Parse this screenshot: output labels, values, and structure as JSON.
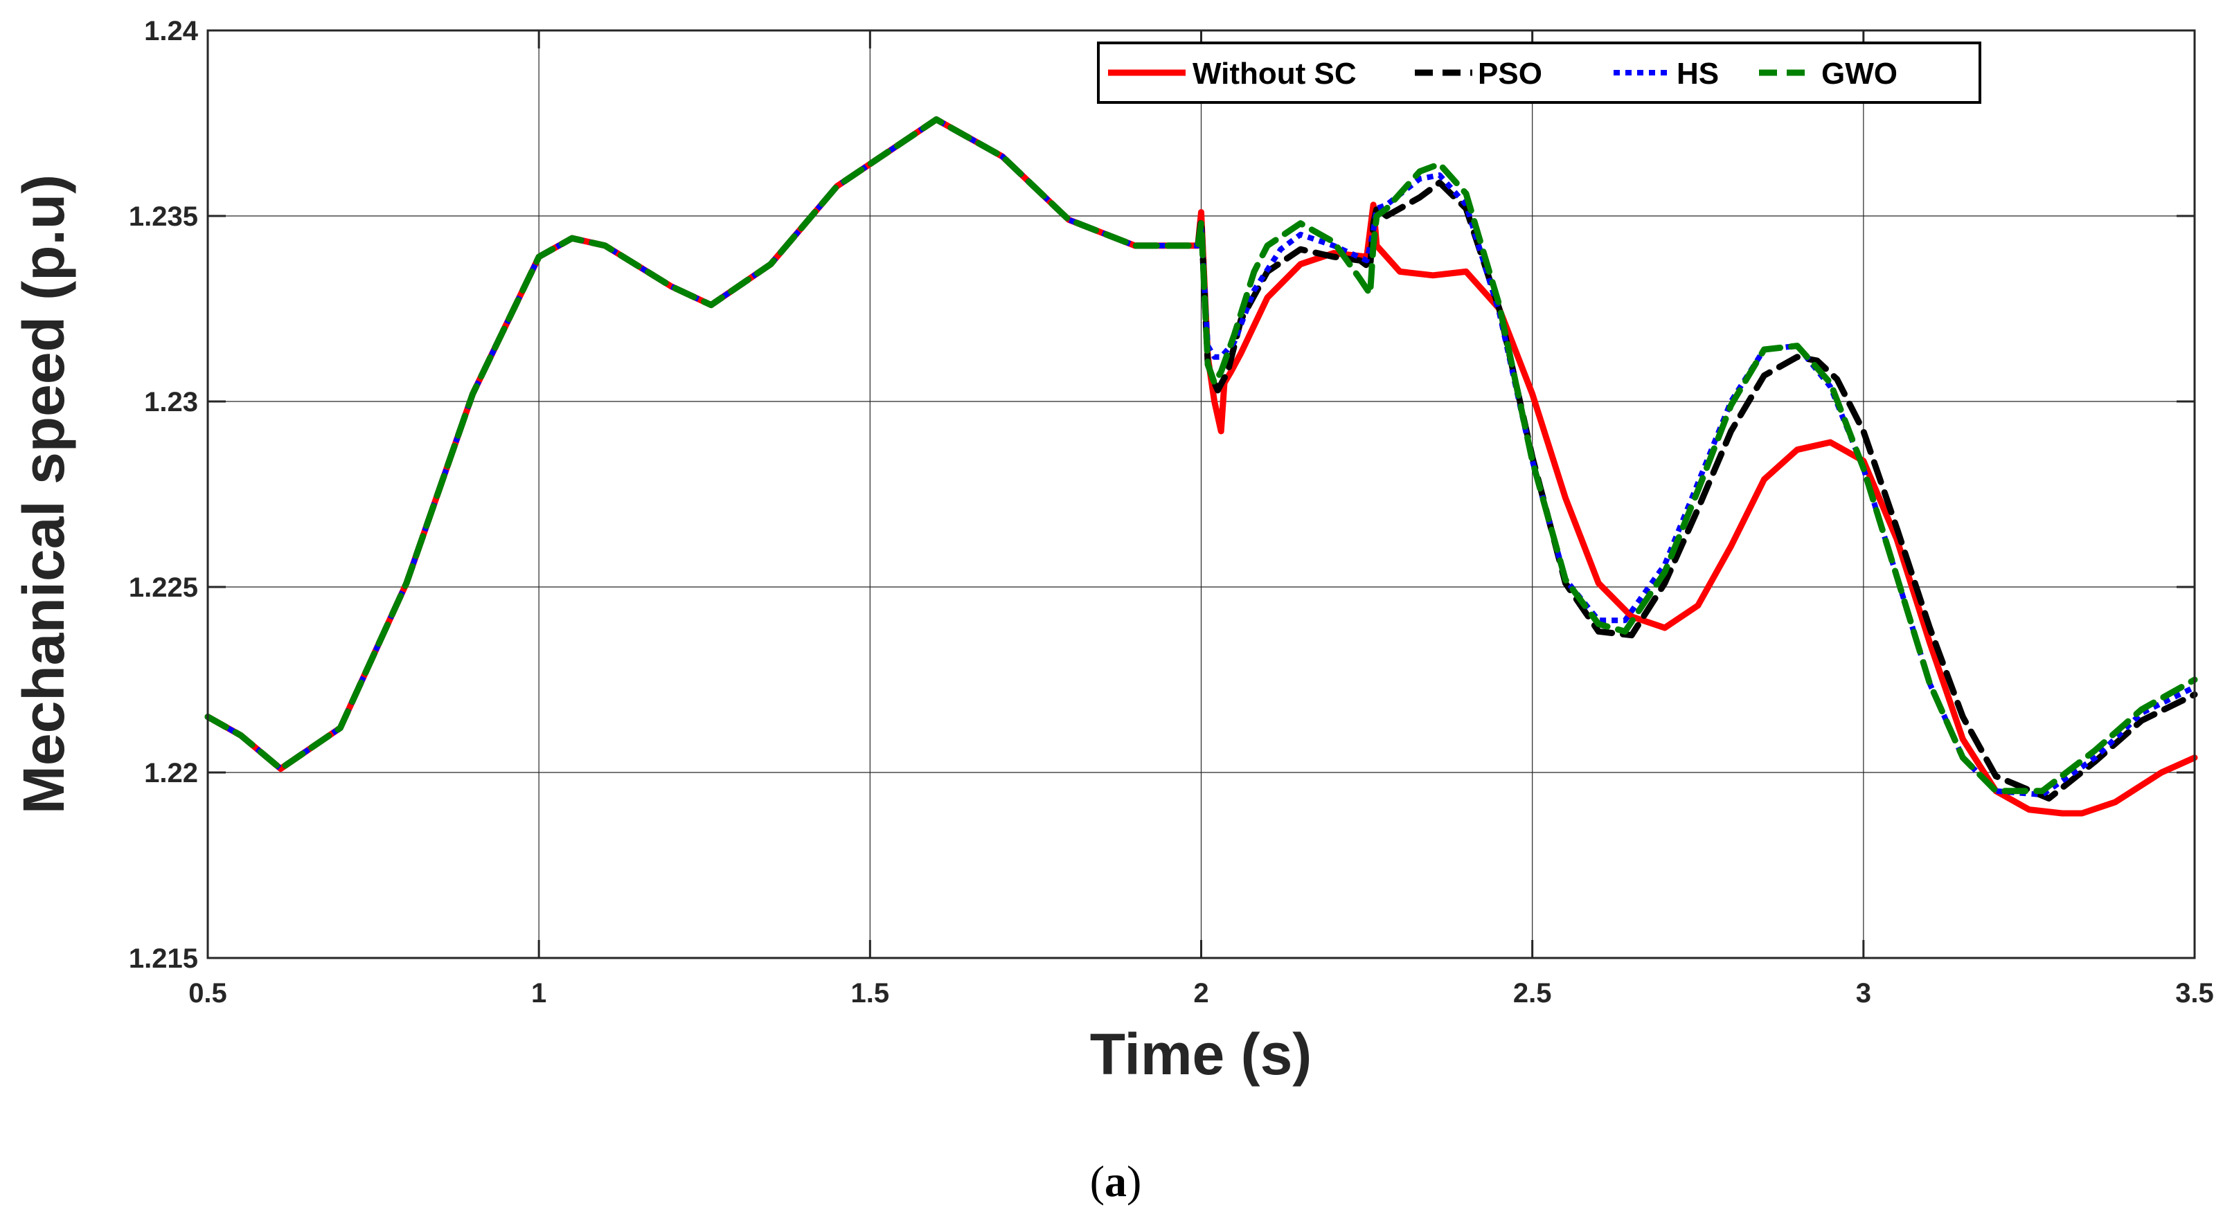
{
  "chart_data": {
    "type": "line",
    "title": "",
    "xlabel": "Time (s)",
    "ylabel": "Mechanical speed (p.u)",
    "xlim": [
      0.5,
      3.5
    ],
    "ylim": [
      1.215,
      1.24
    ],
    "x_ticks": [
      0.5,
      1,
      1.5,
      2,
      2.5,
      3,
      3.5
    ],
    "x_tick_labels": [
      "0.5",
      "1",
      "1.5",
      "2",
      "2.5",
      "3",
      "3.5"
    ],
    "y_ticks": [
      1.215,
      1.22,
      1.225,
      1.23,
      1.235,
      1.24
    ],
    "y_tick_labels": [
      "1.215",
      "1.22",
      "1.225",
      "1.23",
      "1.235",
      "1.24"
    ],
    "grid": true,
    "legend_position": "top-right",
    "series": [
      {
        "name": "Without SC",
        "color": "#ff0000",
        "style": "solid",
        "x": [
          0.5,
          0.55,
          0.61,
          0.7,
          0.8,
          0.9,
          1.0,
          1.05,
          1.1,
          1.2,
          1.26,
          1.35,
          1.45,
          1.6,
          1.7,
          1.8,
          1.9,
          1.95,
          1.995,
          2.0,
          2.01,
          2.02,
          2.025,
          2.03,
          2.035,
          2.045,
          2.06,
          2.1,
          2.15,
          2.2,
          2.25,
          2.26,
          2.265,
          2.28,
          2.3,
          2.35,
          2.4,
          2.45,
          2.5,
          2.55,
          2.6,
          2.65,
          2.7,
          2.75,
          2.8,
          2.85,
          2.9,
          2.95,
          3.0,
          3.05,
          3.1,
          3.15,
          3.2,
          3.25,
          3.3,
          3.33,
          3.38,
          3.45,
          3.5
        ],
        "y": [
          1.2215,
          1.221,
          1.2201,
          1.2212,
          1.2251,
          1.2302,
          1.2339,
          1.2344,
          1.2342,
          1.2331,
          1.2326,
          1.2337,
          1.2358,
          1.2376,
          1.2366,
          1.2349,
          1.2342,
          1.2342,
          1.2342,
          1.2351,
          1.2312,
          1.23,
          1.2296,
          1.2292,
          1.2305,
          1.2308,
          1.2313,
          1.2328,
          1.2337,
          1.234,
          1.2339,
          1.2353,
          1.2342,
          1.2339,
          1.2335,
          1.2334,
          1.2335,
          1.2325,
          1.2302,
          1.2274,
          1.2251,
          1.2242,
          1.2239,
          1.2245,
          1.2261,
          1.2279,
          1.2287,
          1.2289,
          1.2284,
          1.2263,
          1.2235,
          1.2209,
          1.2195,
          1.219,
          1.2189,
          1.2189,
          1.2192,
          1.22,
          1.2204
        ]
      },
      {
        "name": "PSO",
        "color": "#000000",
        "style": "dashed",
        "x": [
          0.5,
          0.55,
          0.61,
          0.7,
          0.8,
          0.9,
          1.0,
          1.05,
          1.1,
          1.2,
          1.26,
          1.35,
          1.45,
          1.6,
          1.7,
          1.8,
          1.9,
          1.95,
          1.995,
          2.0,
          2.01,
          2.02,
          2.025,
          2.04,
          2.06,
          2.1,
          2.15,
          2.2,
          2.24,
          2.255,
          2.26,
          2.265,
          2.28,
          2.33,
          2.36,
          2.4,
          2.45,
          2.5,
          2.55,
          2.6,
          2.65,
          2.7,
          2.75,
          2.8,
          2.85,
          2.9,
          2.93,
          2.96,
          3.0,
          3.05,
          3.1,
          3.15,
          3.2,
          3.28,
          3.35,
          3.42,
          3.5
        ],
        "y": [
          1.2215,
          1.221,
          1.2201,
          1.2212,
          1.2251,
          1.2302,
          1.2339,
          1.2344,
          1.2342,
          1.2331,
          1.2326,
          1.2337,
          1.2358,
          1.2376,
          1.2366,
          1.2349,
          1.2342,
          1.2342,
          1.2342,
          1.2349,
          1.231,
          1.2305,
          1.2303,
          1.2308,
          1.2322,
          1.2335,
          1.2341,
          1.2339,
          1.2338,
          1.2336,
          1.2348,
          1.2352,
          1.235,
          1.2355,
          1.2359,
          1.2352,
          1.2325,
          1.2285,
          1.2251,
          1.2238,
          1.2237,
          1.2251,
          1.2271,
          1.2292,
          1.2307,
          1.2312,
          1.2311,
          1.2306,
          1.2292,
          1.2266,
          1.2239,
          1.2215,
          1.2199,
          1.2193,
          1.2203,
          1.2214,
          1.2221
        ]
      },
      {
        "name": "HS",
        "color": "#0000ff",
        "style": "dotted",
        "x": [
          0.5,
          0.55,
          0.61,
          0.7,
          0.8,
          0.9,
          1.0,
          1.05,
          1.1,
          1.2,
          1.26,
          1.35,
          1.45,
          1.6,
          1.7,
          1.8,
          1.9,
          1.95,
          1.995,
          2.0,
          2.01,
          2.02,
          2.03,
          2.05,
          2.08,
          2.12,
          2.15,
          2.2,
          2.25,
          2.26,
          2.265,
          2.28,
          2.33,
          2.36,
          2.4,
          2.45,
          2.5,
          2.55,
          2.6,
          2.64,
          2.7,
          2.75,
          2.8,
          2.85,
          2.9,
          2.95,
          3.0,
          3.05,
          3.1,
          3.15,
          3.2,
          3.27,
          3.35,
          3.42,
          3.5
        ],
        "y": [
          1.2215,
          1.221,
          1.2201,
          1.2212,
          1.2251,
          1.2302,
          1.2339,
          1.2344,
          1.2342,
          1.2331,
          1.2326,
          1.2337,
          1.2358,
          1.2376,
          1.2366,
          1.2349,
          1.2342,
          1.2342,
          1.2342,
          1.2347,
          1.2315,
          1.2312,
          1.2312,
          1.2316,
          1.233,
          1.2341,
          1.2345,
          1.2342,
          1.2338,
          1.2346,
          1.2352,
          1.2353,
          1.236,
          1.2361,
          1.2353,
          1.2324,
          1.2284,
          1.2252,
          1.2241,
          1.2241,
          1.2256,
          1.2278,
          1.23,
          1.2314,
          1.2315,
          1.2304,
          1.2282,
          1.2253,
          1.2224,
          1.2204,
          1.2195,
          1.2194,
          1.2204,
          1.2216,
          1.2223
        ]
      },
      {
        "name": "GWO",
        "color": "#008000",
        "style": "dashed",
        "x": [
          0.5,
          0.55,
          0.61,
          0.7,
          0.8,
          0.9,
          1.0,
          1.05,
          1.1,
          1.2,
          1.26,
          1.35,
          1.45,
          1.6,
          1.7,
          1.8,
          1.9,
          1.95,
          1.995,
          2.0,
          2.01,
          2.02,
          2.03,
          2.05,
          2.08,
          2.1,
          2.15,
          2.2,
          2.24,
          2.255,
          2.26,
          2.265,
          2.28,
          2.33,
          2.36,
          2.4,
          2.45,
          2.5,
          2.55,
          2.6,
          2.64,
          2.7,
          2.75,
          2.8,
          2.85,
          2.9,
          2.95,
          3.0,
          3.05,
          3.1,
          3.15,
          3.2,
          3.27,
          3.35,
          3.42,
          3.5
        ],
        "y": [
          1.2215,
          1.221,
          1.2201,
          1.2212,
          1.2251,
          1.2302,
          1.2339,
          1.2344,
          1.2342,
          1.2331,
          1.2326,
          1.2337,
          1.2358,
          1.2376,
          1.2366,
          1.2349,
          1.2342,
          1.2342,
          1.2342,
          1.2348,
          1.231,
          1.2305,
          1.2308,
          1.2318,
          1.2335,
          1.2342,
          1.2348,
          1.2343,
          1.2333,
          1.2329,
          1.2342,
          1.235,
          1.2352,
          1.2362,
          1.2364,
          1.2356,
          1.2326,
          1.2284,
          1.2252,
          1.224,
          1.2238,
          1.2254,
          1.2276,
          1.2299,
          1.2314,
          1.2315,
          1.2305,
          1.2282,
          1.2253,
          1.2224,
          1.2204,
          1.2195,
          1.2195,
          1.2206,
          1.2217,
          1.2225
        ]
      }
    ]
  },
  "caption": {
    "open": "(",
    "letter": "a",
    "close": ")"
  }
}
